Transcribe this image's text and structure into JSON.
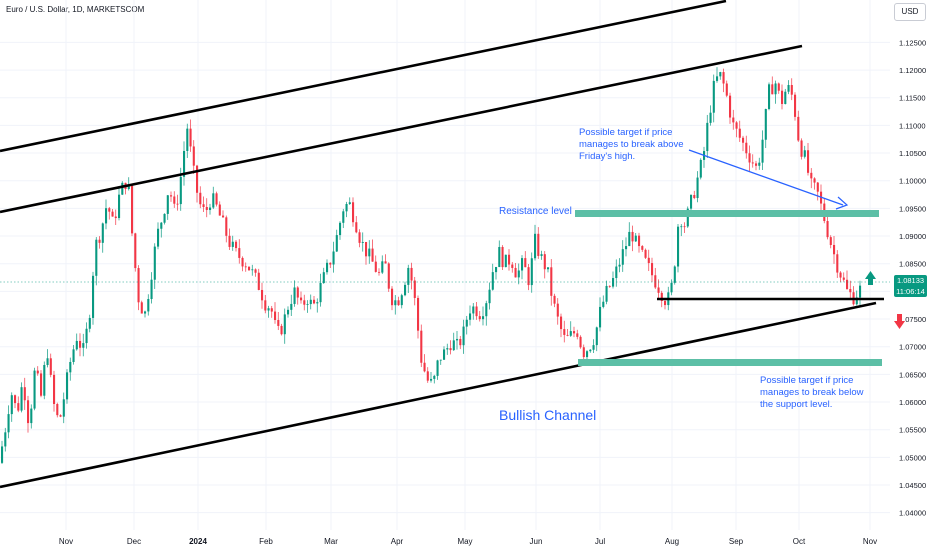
{
  "header": {
    "symbol_title": "Euro / U.S. Dollar, 1D, MARKETSCOM",
    "currency": "USD"
  },
  "price_tag": {
    "price": "1.08133",
    "countdown": "11:06:14"
  },
  "annotations": {
    "resistance": "Resistance level",
    "target_up": [
      "Possible target if price",
      "manages to break above",
      "Friday's high."
    ],
    "target_down": [
      "Possible target if price",
      "manages to break below",
      "the support level."
    ],
    "channel": "Bullish Channel"
  },
  "colors": {
    "up": "#089981",
    "down": "#f23645",
    "zone": "#5cbfa6",
    "annotation_text": "#2962ff",
    "channel_line": "#000000",
    "grid": "#f0f3fa"
  },
  "icons": {
    "up_arrow": "arrow-up-icon",
    "down_arrow": "arrow-down-icon"
  },
  "chart_data": {
    "type": "candlestick",
    "y_ticks": [
      "1.12500",
      "1.12000",
      "1.11500",
      "1.11000",
      "1.10500",
      "1.10000",
      "1.09500",
      "1.09000",
      "1.08500",
      "1.08000",
      "1.07500",
      "1.07000",
      "1.06500",
      "1.06000",
      "1.05500",
      "1.05000",
      "1.04500",
      "1.04000"
    ],
    "x_ticks": [
      "Nov",
      "Dec",
      "2024",
      "Feb",
      "Mar",
      "Apr",
      "May",
      "Jun",
      "Jul",
      "Aug",
      "Sep",
      "Oct",
      "Nov"
    ],
    "ylim": [
      1.0394,
      1.1267
    ],
    "current_price": 1.08133,
    "resistance_zone": [
      1.0927,
      1.0937
    ],
    "support_target_zone": [
      1.0665,
      1.0675
    ],
    "grid": true,
    "price_path": [
      [
        0,
        1.049
      ],
      [
        6,
        1.055
      ],
      [
        12,
        1.062
      ],
      [
        18,
        1.058
      ],
      [
        24,
        1.064
      ],
      [
        30,
        1.056
      ],
      [
        36,
        1.066
      ],
      [
        42,
        1.061
      ],
      [
        48,
        1.07
      ],
      [
        54,
        1.06
      ],
      [
        60,
        1.056
      ],
      [
        66,
        1.062
      ],
      [
        72,
        1.068
      ],
      [
        78,
        1.072
      ],
      [
        84,
        1.069
      ],
      [
        90,
        1.075
      ],
      [
        96,
        1.088
      ],
      [
        102,
        1.091
      ],
      [
        108,
        1.096
      ],
      [
        114,
        1.092
      ],
      [
        120,
        1.097
      ],
      [
        126,
        1.1
      ],
      [
        130,
        1.098
      ],
      [
        134,
        1.088
      ],
      [
        140,
        1.078
      ],
      [
        146,
        1.076
      ],
      [
        152,
        1.083
      ],
      [
        158,
        1.09
      ],
      [
        164,
        1.094
      ],
      [
        170,
        1.099
      ],
      [
        176,
        1.094
      ],
      [
        182,
        1.101
      ],
      [
        188,
        1.11
      ],
      [
        194,
        1.102
      ],
      [
        200,
        1.096
      ],
      [
        206,
        1.094
      ],
      [
        212,
        1.097
      ],
      [
        218,
        1.095
      ],
      [
        224,
        1.092
      ],
      [
        230,
        1.089
      ],
      [
        236,
        1.087
      ],
      [
        242,
        1.086
      ],
      [
        248,
        1.085
      ],
      [
        254,
        1.083
      ],
      [
        260,
        1.081
      ],
      [
        266,
        1.078
      ],
      [
        272,
        1.077
      ],
      [
        278,
        1.072
      ],
      [
        284,
        1.074
      ],
      [
        290,
        1.078
      ],
      [
        296,
        1.08
      ],
      [
        302,
        1.077
      ],
      [
        308,
        1.079
      ],
      [
        314,
        1.077
      ],
      [
        320,
        1.08
      ],
      [
        326,
        1.083
      ],
      [
        332,
        1.086
      ],
      [
        338,
        1.09
      ],
      [
        344,
        1.095
      ],
      [
        350,
        1.096
      ],
      [
        356,
        1.093
      ],
      [
        362,
        1.089
      ],
      [
        368,
        1.087
      ],
      [
        374,
        1.085
      ],
      [
        380,
        1.083
      ],
      [
        386,
        1.085
      ],
      [
        392,
        1.079
      ],
      [
        398,
        1.078
      ],
      [
        404,
        1.081
      ],
      [
        410,
        1.085
      ],
      [
        416,
        1.078
      ],
      [
        422,
        1.068
      ],
      [
        428,
        1.064
      ],
      [
        434,
        1.063
      ],
      [
        440,
        1.068
      ],
      [
        446,
        1.069
      ],
      [
        452,
        1.071
      ],
      [
        458,
        1.07
      ],
      [
        464,
        1.072
      ],
      [
        470,
        1.077
      ],
      [
        476,
        1.077
      ],
      [
        482,
        1.076
      ],
      [
        488,
        1.079
      ],
      [
        494,
        1.084
      ],
      [
        500,
        1.087
      ],
      [
        506,
        1.085
      ],
      [
        512,
        1.086
      ],
      [
        518,
        1.083
      ],
      [
        524,
        1.085
      ],
      [
        530,
        1.082
      ],
      [
        536,
        1.089
      ],
      [
        542,
        1.086
      ],
      [
        548,
        1.084
      ],
      [
        554,
        1.078
      ],
      [
        560,
        1.074
      ],
      [
        566,
        1.071
      ],
      [
        572,
        1.072
      ],
      [
        578,
        1.073
      ],
      [
        584,
        1.069
      ],
      [
        590,
        1.07
      ],
      [
        596,
        1.072
      ],
      [
        602,
        1.077
      ],
      [
        608,
        1.08
      ],
      [
        614,
        1.082
      ],
      [
        620,
        1.085
      ],
      [
        626,
        1.088
      ],
      [
        632,
        1.091
      ],
      [
        638,
        1.088
      ],
      [
        644,
        1.086
      ],
      [
        650,
        1.084
      ],
      [
        656,
        1.082
      ],
      [
        662,
        1.08
      ],
      [
        668,
        1.078
      ],
      [
        672,
        1.08
      ],
      [
        676,
        1.086
      ],
      [
        680,
        1.094
      ],
      [
        686,
        1.092
      ],
      [
        692,
        1.096
      ],
      [
        698,
        1.1
      ],
      [
        704,
        1.104
      ],
      [
        710,
        1.112
      ],
      [
        716,
        1.118
      ],
      [
        722,
        1.119
      ],
      [
        728,
        1.115
      ],
      [
        734,
        1.11
      ],
      [
        740,
        1.108
      ],
      [
        746,
        1.106
      ],
      [
        752,
        1.104
      ],
      [
        758,
        1.102
      ],
      [
        764,
        1.108
      ],
      [
        770,
        1.116
      ],
      [
        776,
        1.118
      ],
      [
        782,
        1.114
      ],
      [
        788,
        1.117
      ],
      [
        794,
        1.115
      ],
      [
        800,
        1.107
      ],
      [
        806,
        1.104
      ],
      [
        812,
        1.099
      ],
      [
        818,
        1.098
      ],
      [
        824,
        1.094
      ],
      [
        830,
        1.09
      ],
      [
        836,
        1.086
      ],
      [
        842,
        1.083
      ],
      [
        848,
        1.08
      ],
      [
        854,
        1.079
      ],
      [
        860,
        1.08
      ],
      [
        864,
        1.0813
      ]
    ]
  }
}
